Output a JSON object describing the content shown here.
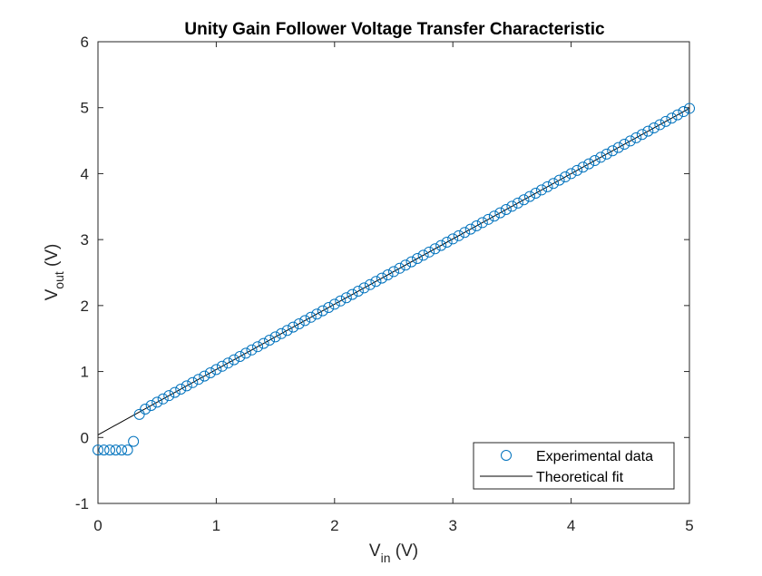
{
  "chart_data": {
    "type": "scatter",
    "title": "Unity Gain Follower Voltage Transfer Characteristic",
    "xlabel": {
      "main": "V",
      "sub": "in",
      "unit": " (V)"
    },
    "ylabel": {
      "main": "V",
      "sub": "out",
      "unit": " (V)"
    },
    "xlim": [
      0,
      5
    ],
    "ylim": [
      -1,
      6
    ],
    "xticks": [
      "0",
      "1",
      "2",
      "3",
      "4",
      "5"
    ],
    "yticks": [
      "-1",
      "0",
      "1",
      "2",
      "3",
      "4",
      "5",
      "6"
    ],
    "grid": false,
    "legend_position": "bottom-right",
    "series": [
      {
        "name": "Experimental data",
        "marker": "circle",
        "color": "#0072BD",
        "x_start": 0.0,
        "x_step": 0.05,
        "y": [
          -0.19,
          -0.19,
          -0.19,
          -0.19,
          -0.19,
          -0.19,
          -0.06,
          0.35,
          0.43
        ]
      },
      {
        "name": "Theoretical fit",
        "style": "line",
        "color": "#000000",
        "x": [
          0,
          5
        ],
        "y": [
          0.04,
          4.99
        ]
      }
    ],
    "experimental_linear_region": {
      "x_from": 0.45,
      "x_to": 5.0,
      "x_step": 0.05,
      "slope": 0.99,
      "intercept": 0.04
    }
  }
}
